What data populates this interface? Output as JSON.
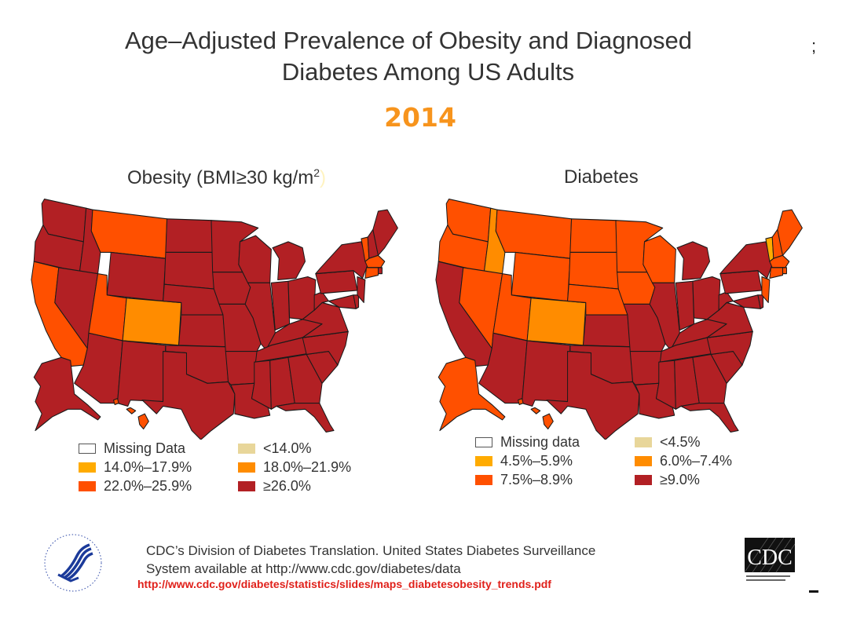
{
  "header": {
    "title_line1": "Age–Adjusted Prevalence of Obesity and Diagnosed",
    "title_line2": "Diabetes Among US Adults",
    "year": "2014",
    "stray_glyph": ";"
  },
  "colors": {
    "missing": "#ffffff",
    "c1": "#e8d69a",
    "c2": "#ffab00",
    "c3": "#ff8c00",
    "c4": "#ff5000",
    "c5": "#b22024",
    "title_accent": "#f7941d",
    "link": "#e0201a"
  },
  "chart_data": [
    {
      "type": "choropleth-map",
      "title": "Obesity (BMI≥30 kg/m²)",
      "title_main": "Obesity (BMI≥30 kg/m",
      "title_sup": "2",
      "title_close": ")",
      "legend": [
        {
          "key": "missing",
          "label": "Missing Data"
        },
        {
          "key": "c1",
          "label": "<14.0%"
        },
        {
          "key": "c2",
          "label": "14.0%–17.9%"
        },
        {
          "key": "c3",
          "label": "18.0%–21.9%"
        },
        {
          "key": "c4",
          "label": "22.0%–25.9%"
        },
        {
          "key": "c5",
          "label": "≥26.0%"
        }
      ],
      "default_class": "c5",
      "states": {
        "CA": "c4",
        "MT": "c4",
        "UT": "c4",
        "CO": "c3",
        "HI": "c4",
        "VT": "c4",
        "MA": "c4",
        "CT": "c4",
        "NH": "c5"
      }
    },
    {
      "type": "choropleth-map",
      "title": "Diabetes",
      "legend": [
        {
          "key": "missing",
          "label": "Missing data"
        },
        {
          "key": "c1",
          "label": "<4.5%"
        },
        {
          "key": "c2",
          "label": "4.5%–5.9%"
        },
        {
          "key": "c3",
          "label": "6.0%–7.4%"
        },
        {
          "key": "c4",
          "label": "7.5%–8.9%"
        },
        {
          "key": "c5",
          "label": "≥9.0%"
        }
      ],
      "default_class": "c5",
      "states": {
        "WA": "c4",
        "OR": "c4",
        "ID": "c3",
        "MT": "c4",
        "WY": "c4",
        "NV": "c4",
        "UT": "c4",
        "CO": "c3",
        "ND": "c4",
        "SD": "c4",
        "NE": "c4",
        "MN": "c4",
        "IA": "c4",
        "WI": "c4",
        "AK": "c4",
        "HI": "c4",
        "VT": "c2",
        "NH": "c4",
        "ME": "c4",
        "MA": "c4",
        "CT": "c4",
        "RI": "c4",
        "NJ": "c4"
      }
    }
  ],
  "footer": {
    "source_line1": "CDC’s Division of Diabetes Translation. United States Diabetes Surveillance",
    "source_line2": "System available at http://www.cdc.gov/diabetes/data",
    "link": "http://www.cdc.gov/diabetes/statistics/slides/maps_diabetesobesity_trends.pdf",
    "cdc_logo_text": "CDC",
    "hhs_logo": "hhs-eagle-logo"
  }
}
